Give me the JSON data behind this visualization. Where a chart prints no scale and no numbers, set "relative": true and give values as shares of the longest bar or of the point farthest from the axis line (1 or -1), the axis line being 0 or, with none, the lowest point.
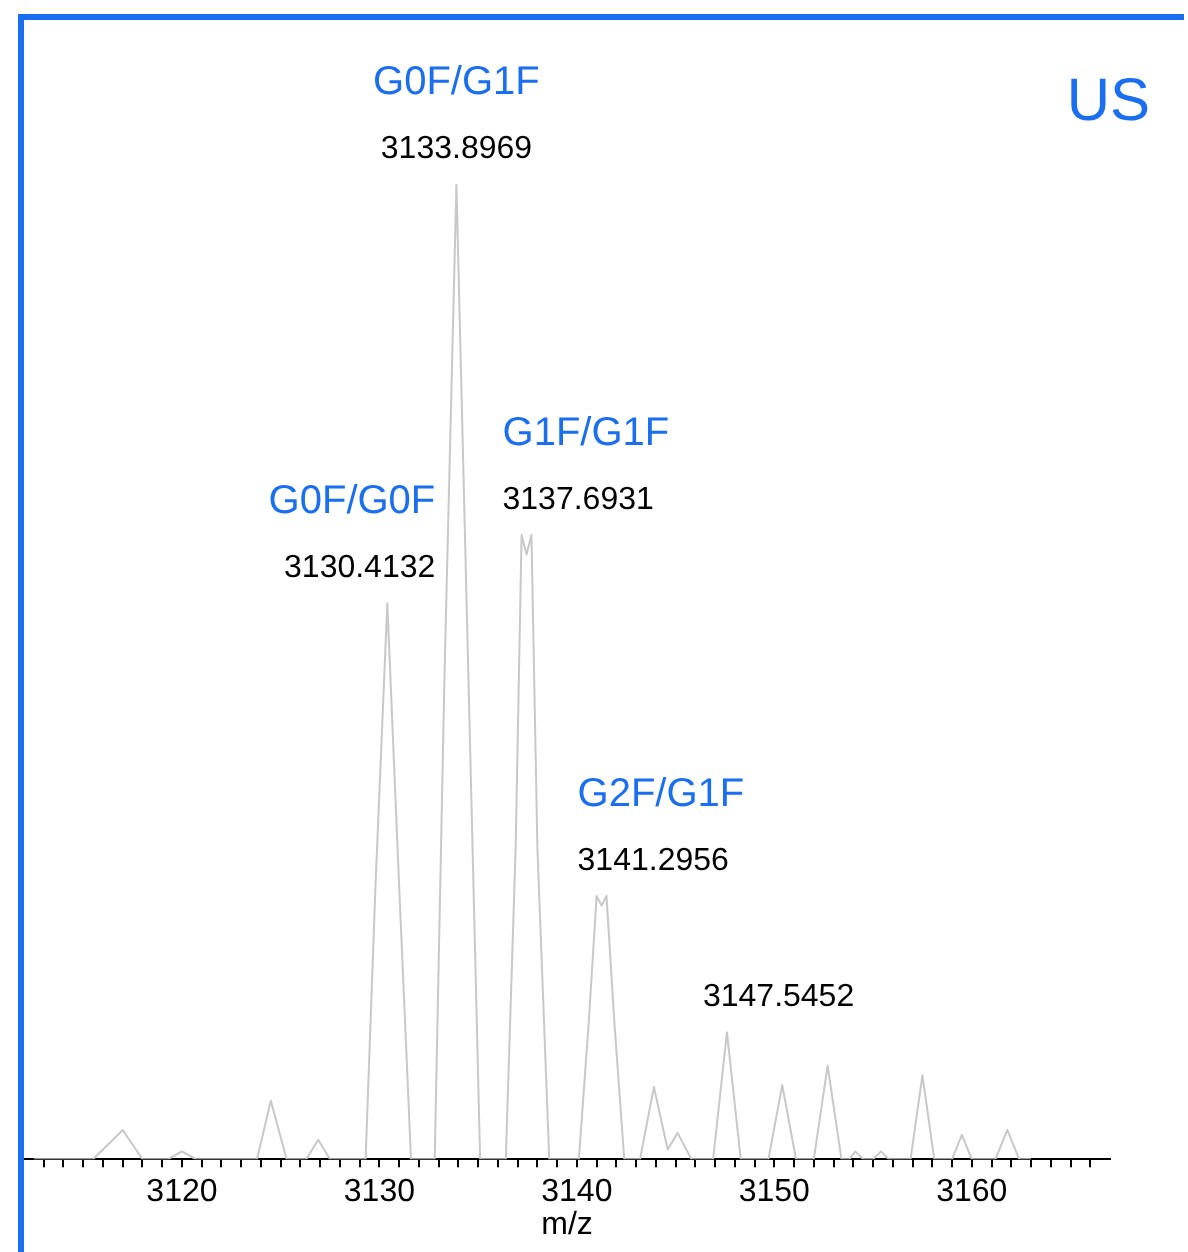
{
  "chart_data": {
    "type": "line",
    "relative": true,
    "xlabel": "m/z",
    "marker": "none",
    "xlim": [
      3112,
      3167
    ],
    "xticks": [
      {
        "value": 3113,
        "label": null
      },
      {
        "value": 3114,
        "label": null
      },
      {
        "value": 3115,
        "label": null
      },
      {
        "value": 3116,
        "label": null
      },
      {
        "value": 3117,
        "label": null
      },
      {
        "value": 3118,
        "label": null
      },
      {
        "value": 3119,
        "label": null
      },
      3120,
      {
        "value": 3121,
        "label": null
      },
      {
        "value": 3122,
        "label": null
      },
      {
        "value": 3123,
        "label": null
      },
      {
        "value": 3124,
        "label": null
      },
      {
        "value": 3125,
        "label": null
      },
      {
        "value": 3126,
        "label": null
      },
      {
        "value": 3127,
        "label": null
      },
      {
        "value": 3128,
        "label": null
      },
      {
        "value": 3129,
        "label": null
      },
      3130,
      {
        "value": 3131,
        "label": null
      },
      {
        "value": 3132,
        "label": null
      },
      {
        "value": 3133,
        "label": null
      },
      {
        "value": 3134,
        "label": null
      },
      {
        "value": 3135,
        "label": null
      },
      {
        "value": 3136,
        "label": null
      },
      {
        "value": 3137,
        "label": null
      },
      {
        "value": 3138,
        "label": null
      },
      {
        "value": 3139,
        "label": null
      },
      3140,
      {
        "value": 3141,
        "label": null
      },
      {
        "value": 3142,
        "label": null
      },
      {
        "value": 3143,
        "label": null
      },
      {
        "value": 3144,
        "label": null
      },
      {
        "value": 3145,
        "label": null
      },
      {
        "value": 3146,
        "label": null
      },
      {
        "value": 3147,
        "label": null
      },
      {
        "value": 3148,
        "label": null
      },
      {
        "value": 3149,
        "label": null
      },
      3150,
      {
        "value": 3151,
        "label": null
      },
      {
        "value": 3152,
        "label": null
      },
      {
        "value": 3153,
        "label": null
      },
      {
        "value": 3154,
        "label": null
      },
      {
        "value": 3155,
        "label": null
      },
      {
        "value": 3156,
        "label": null
      },
      {
        "value": 3157,
        "label": null
      },
      {
        "value": 3158,
        "label": null
      },
      {
        "value": 3159,
        "label": null
      },
      3160,
      {
        "value": 3161,
        "label": null
      },
      {
        "value": 3162,
        "label": null
      },
      {
        "value": 3163,
        "label": null
      },
      {
        "value": 3164,
        "label": null
      },
      {
        "value": 3165,
        "label": null
      },
      {
        "value": 3166,
        "label": null
      }
    ],
    "series": [
      {
        "color": "#c8c8c8",
        "x": [
          3112.5,
          3115.5,
          3117.0,
          3118.0,
          3119.3,
          3120.0,
          3120.7,
          3123.8,
          3124.5,
          3125.3,
          3126.3,
          3126.9,
          3127.5,
          3129.3,
          3129.8,
          3130.4,
          3131.0,
          3131.6,
          3132.8,
          3133.3,
          3133.9,
          3134.5,
          3135.1,
          3136.4,
          3136.9,
          3137.2,
          3137.45,
          3137.7,
          3138.0,
          3138.6,
          3140.1,
          3140.6,
          3141.0,
          3141.25,
          3141.5,
          3141.9,
          3142.4,
          3143.2,
          3143.9,
          3144.6,
          3145.1,
          3145.8,
          3146.9,
          3147.6,
          3148.3,
          3149.7,
          3150.4,
          3151.1,
          3152.0,
          3152.7,
          3153.4,
          3153.8,
          3154.1,
          3154.5,
          3155.0,
          3155.4,
          3155.8,
          3156.9,
          3157.5,
          3158.1,
          3159.0,
          3159.5,
          3160.0,
          3161.2,
          3161.8,
          3162.4,
          3163.0
        ],
        "values": [
          0,
          0,
          0.03,
          0,
          0,
          0.008,
          0,
          0,
          0.06,
          0,
          0,
          0.02,
          0,
          0,
          0.28,
          0.57,
          0.28,
          0,
          0,
          0.5,
          1,
          0.5,
          0,
          0,
          0.32,
          0.64,
          0.62,
          0.64,
          0.32,
          0,
          0,
          0.14,
          0.27,
          0.26,
          0.27,
          0.14,
          0,
          0,
          0.074,
          0.01,
          0.027,
          0,
          0,
          0.13,
          0,
          0,
          0.076,
          0,
          0,
          0.096,
          0,
          0,
          0.008,
          0,
          0,
          0.008,
          0,
          0,
          0.086,
          0,
          0,
          0.025,
          0,
          0,
          0.03,
          0,
          0
        ]
      }
    ],
    "annotations": [
      "US",
      {
        "text": "G0F/G1F",
        "x": 3133.9,
        "y": 1
      },
      {
        "text": "3133.8969",
        "x": 3133.9,
        "y": 1
      },
      {
        "text": "G0F/G0F",
        "x": 3130.4,
        "y": 0.57
      },
      {
        "text": "3130.4132",
        "x": 3130.4,
        "y": 0.57
      },
      {
        "text": "G1F/G1F",
        "x": 3137.45,
        "y": 0.64
      },
      {
        "text": "3137.6931",
        "x": 3137.45,
        "y": 0.64
      },
      {
        "text": "G2F/G1F",
        "x": 3141.25,
        "y": 0.27
      },
      {
        "text": "3141.2956",
        "x": 3141.25,
        "y": 0.27
      },
      {
        "text": "3147.5452",
        "x": 3147.6,
        "y": 0.13
      }
    ]
  }
}
